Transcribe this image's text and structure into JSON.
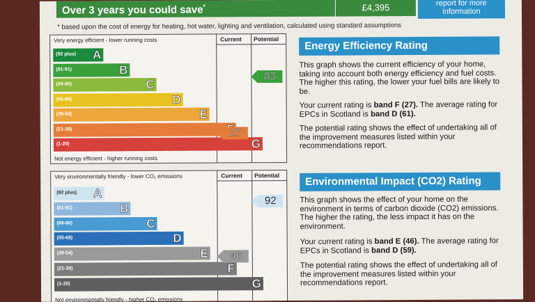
{
  "header": {
    "savings_label": "Over 3 years you could save",
    "savings_marker": "*",
    "savings_value": "£4,395",
    "report_link": "report for more information"
  },
  "footnote": "* based upon the cost of energy for heating, hot water, lighting and ventilation, calculated using standard assumptions",
  "energy_chart": {
    "top_label": "Very energy efficient - lower running costs",
    "bottom_label": "Not energy efficient - higher running costs",
    "col_current": "Current",
    "col_potential": "Potential",
    "current_value": "27",
    "potential_value": "83",
    "bands": [
      {
        "range": "(92 plus)",
        "letter": "A",
        "color": "#1b8a3c"
      },
      {
        "range": "(81-91)",
        "letter": "B",
        "color": "#3aa03c"
      },
      {
        "range": "(69-80)",
        "letter": "C",
        "color": "#8cba3a"
      },
      {
        "range": "(55-68)",
        "letter": "D",
        "color": "#e8c21e"
      },
      {
        "range": "(39-54)",
        "letter": "E",
        "color": "#eda63a"
      },
      {
        "range": "(21-38)",
        "letter": "F",
        "color": "#e67c3a"
      },
      {
        "range": "(1-20)",
        "letter": "G",
        "color": "#d6413b"
      }
    ]
  },
  "env_chart": {
    "top_label": "Very environmentally friendly - lower CO₂ emissions",
    "bottom_label": "Not environmentally friendly - higher CO₂ emissions",
    "col_current": "Current",
    "col_potential": "Potential",
    "current_value": "46",
    "potential_value": "92",
    "bands": [
      {
        "range": "(92 plus)",
        "letter": "A",
        "color": "#cfe3f0"
      },
      {
        "range": "(81-91)",
        "letter": "B",
        "color": "#8fb7dd"
      },
      {
        "range": "(69-80)",
        "letter": "C",
        "color": "#4a9ad3"
      },
      {
        "range": "(55-68)",
        "letter": "D",
        "color": "#2a6fb8"
      },
      {
        "range": "(39-54)",
        "letter": "E",
        "color": "#9a9a9a"
      },
      {
        "range": "(21-38)",
        "letter": "F",
        "color": "#7c7c7c"
      },
      {
        "range": "(1-20)",
        "letter": "G",
        "color": "#5e5e5e"
      }
    ]
  },
  "energy_info": {
    "title": "Energy Efficiency Rating",
    "p1": "This graph shows the current efficiency of your home, taking into account both energy efficiency and fuel costs. The higher this rating, the lower your fuel bills are likely to be.",
    "p2_a": "Your current rating is ",
    "p2_b": "band F (27).",
    "p2_c": " The average rating for EPCs in Scotland is ",
    "p2_d": "band D (61).",
    "p3": "The potential rating shows the effect of undertaking all of the improvement measures listed within your recommendations report."
  },
  "env_info": {
    "title": "Environmental Impact (CO2) Rating",
    "p1": "This graph shows the effect of your home on the environment in terms of carbon dioxide (CO2) emissions. The higher the rating, the less impact it has on the environment.",
    "p2_a": "Your current rating is ",
    "p2_b": "band E (46).",
    "p2_c": " The average rating for EPCs in Scotland is ",
    "p2_d": "band D (59).",
    "p3": "The potential rating shows the effect of undertaking all of the improvement measures listed within your recommendations report."
  },
  "colors": {
    "energy_header": "#2a90c8",
    "env_header": "#2a90c8",
    "arrow_current": "#e67c3a",
    "arrow_potential": "#3aa03c",
    "env_arrow": "#9a9a9a"
  }
}
